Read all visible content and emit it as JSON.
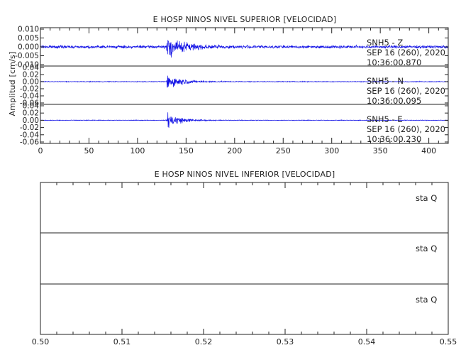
{
  "chart_data": [
    {
      "type": "line",
      "title": "E HOSP NINOS NIVEL SUPERIOR [VELOCIDAD]",
      "ylabel": "Amplitud [cm/s]",
      "xlabel": "",
      "xlim": [
        0,
        420
      ],
      "x_ticks": [
        0,
        50,
        100,
        150,
        200,
        250,
        300,
        350,
        400
      ],
      "x_tick_labels": [
        "0",
        "50",
        "100",
        "150",
        "200",
        "250",
        "300",
        "350",
        "400"
      ],
      "line_color": "#1414e6",
      "grid": false,
      "panels": [
        {
          "station_label": "SNH5 - Z",
          "date_label": "SEP 16 (260), 2020",
          "time_label": "10:36:00.870",
          "ylim": [
            -0.01,
            0.01
          ],
          "y_ticks": [
            -0.01,
            -0.005,
            0,
            0.005,
            0.01
          ],
          "y_tick_labels": [
            "-0.010",
            "-0.005",
            "0.000",
            "0.005",
            "0.010"
          ],
          "event_onset_s": 130,
          "peak_amplitude": 0.008,
          "noise_amplitude": 0.0011,
          "coda_decay_s": 18
        },
        {
          "station_label": "SNH5 - N",
          "date_label": "SEP 16 (260), 2020",
          "time_label": "10:36:00.095",
          "ylim": [
            -0.06,
            0.04
          ],
          "y_ticks": [
            -0.06,
            -0.04,
            -0.02,
            0,
            0.02,
            0.04
          ],
          "y_tick_labels": [
            "-0.06",
            "-0.04",
            "-0.02",
            "0.00",
            "0.02",
            "0.04"
          ],
          "event_onset_s": 130,
          "peak_amplitude": 0.033,
          "noise_amplitude": 0.0015,
          "coda_decay_s": 14
        },
        {
          "station_label": "SNH5 - E",
          "date_label": "SEP 16 (260), 2020",
          "time_label": "10:36:00.230",
          "ylim": [
            -0.06,
            0.04
          ],
          "y_ticks": [
            -0.06,
            -0.04,
            -0.02,
            0,
            0.02,
            0.04
          ],
          "y_tick_labels": [
            "-0.06",
            "-0.04",
            "-0.02",
            "0.00",
            "0.02",
            "0.04"
          ],
          "event_onset_s": 130,
          "peak_amplitude": 0.036,
          "noise_amplitude": 0.0013,
          "coda_decay_s": 12
        }
      ]
    },
    {
      "type": "line",
      "title": "E HOSP NINOS NIVEL INFERIOR [VELOCIDAD]",
      "xlabel": "",
      "ylabel": "",
      "xlim": [
        0.5,
        0.55
      ],
      "x_ticks": [
        0.5,
        0.51,
        0.52,
        0.53,
        0.54,
        0.55
      ],
      "x_tick_labels": [
        "0.50",
        "0.51",
        "0.52",
        "0.53",
        "0.54",
        "0.55"
      ],
      "grid": false,
      "panels": [
        {
          "station_label": "sta  Q"
        },
        {
          "station_label": "sta  Q"
        },
        {
          "station_label": "sta  Q"
        }
      ]
    }
  ]
}
